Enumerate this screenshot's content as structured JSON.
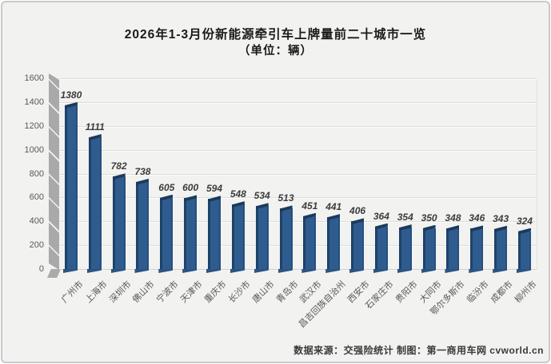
{
  "title": "2026年1-3月份新能源牵引车上牌量前二十城市一览",
  "subtitle": "（单位：辆）",
  "footer": "数据来源：交强险统计 制图：第一商用车网 cvworld.cn",
  "chart_data": {
    "type": "bar",
    "title": "2026年1-3月份新能源牵引车上牌量前二十城市一览",
    "subtitle": "（单位：辆）",
    "categories": [
      "广州市",
      "上海市",
      "深圳市",
      "佛山市",
      "宁波市",
      "天津市",
      "重庆市",
      "长沙市",
      "唐山市",
      "青岛市",
      "武汉市",
      "昌吉回族自治州",
      "西安市",
      "石家庄市",
      "贵阳市",
      "大同市",
      "鄂尔多斯市",
      "临汾市",
      "成都市",
      "柳州市"
    ],
    "values": [
      1380,
      1111,
      782,
      738,
      605,
      600,
      594,
      548,
      534,
      513,
      451,
      441,
      406,
      364,
      354,
      350,
      348,
      346,
      343,
      324
    ],
    "xlabel": "",
    "ylabel": "",
    "ylim": [
      0,
      1600
    ],
    "yticks": [
      0,
      200,
      400,
      600,
      800,
      1000,
      1200,
      1400,
      1600
    ],
    "grid": true,
    "legend": false,
    "style_3d": true
  },
  "colors": {
    "bar_front": "#2F5C8E",
    "bar_side": "#1F4268",
    "bar_cap": "#1B3A5C",
    "canvas_bg": "#F2F2F1",
    "frame_border": "#C9C9C9",
    "gridline": "#DCDCDB",
    "wall": "#A9A9A9",
    "axis_text": "#595959",
    "value_label_text": "#3C3C3C",
    "title_text": "#1A1A1A"
  }
}
